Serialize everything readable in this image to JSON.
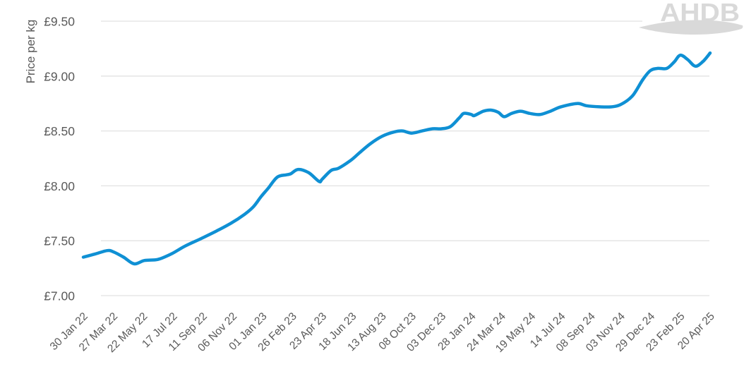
{
  "chart_data": {
    "type": "line",
    "title": "",
    "ylabel": "Price per kg",
    "xlabel": "",
    "ylim": [
      7.0,
      9.5
    ],
    "grid": true,
    "legend_position": "none",
    "y_tick_values": [
      7.0,
      7.5,
      8.0,
      8.5,
      9.0,
      9.5
    ],
    "y_tick_labels": [
      "£7.00",
      "£7.50",
      "£8.00",
      "£8.50",
      "£9.00",
      "£9.50"
    ],
    "x_tick_labels": [
      "30 Jan 22",
      "27 Mar 22",
      "22 May 22",
      "17 Jul 22",
      "11 Sep 22",
      "06 Nov 22",
      "01 Jan 23",
      "26 Feb 23",
      "23 Apr 23",
      "18 Jun 23",
      "13 Aug 23",
      "08 Oct 23",
      "03 Dec 23",
      "28 Jan 24",
      "24 Mar 24",
      "19 May 24",
      "14 Jul 24",
      "08 Sep 24",
      "03 Nov 24",
      "29 Dec 24",
      "23 Feb 25",
      "20 Apr 25"
    ],
    "x_unit_note": "x values of points are in x-tick index units (0 = 30 Jan 22, 21 = 20 Apr 25, 1 unit = 8 weeks)",
    "series": [
      {
        "name": "Price per kg",
        "color": "#0f90d4",
        "points": [
          [
            0.0,
            7.35
          ],
          [
            0.4,
            7.38
          ],
          [
            0.8,
            7.41
          ],
          [
            1.0,
            7.4
          ],
          [
            1.35,
            7.35
          ],
          [
            1.7,
            7.29
          ],
          [
            2.05,
            7.32
          ],
          [
            2.5,
            7.33
          ],
          [
            2.95,
            7.38
          ],
          [
            3.4,
            7.45
          ],
          [
            3.95,
            7.52
          ],
          [
            4.4,
            7.58
          ],
          [
            4.95,
            7.66
          ],
          [
            5.4,
            7.74
          ],
          [
            5.7,
            7.81
          ],
          [
            5.95,
            7.9
          ],
          [
            6.2,
            7.98
          ],
          [
            6.5,
            8.08
          ],
          [
            6.8,
            8.1
          ],
          [
            6.95,
            8.11
          ],
          [
            7.2,
            8.15
          ],
          [
            7.55,
            8.12
          ],
          [
            7.9,
            8.04
          ],
          [
            8.0,
            8.06
          ],
          [
            8.3,
            8.14
          ],
          [
            8.55,
            8.16
          ],
          [
            8.95,
            8.23
          ],
          [
            9.25,
            8.3
          ],
          [
            9.6,
            8.38
          ],
          [
            10.0,
            8.45
          ],
          [
            10.4,
            8.49
          ],
          [
            10.7,
            8.5
          ],
          [
            11.0,
            8.48
          ],
          [
            11.35,
            8.5
          ],
          [
            11.7,
            8.52
          ],
          [
            12.0,
            8.52
          ],
          [
            12.3,
            8.54
          ],
          [
            12.6,
            8.62
          ],
          [
            12.75,
            8.66
          ],
          [
            13.0,
            8.65
          ],
          [
            13.1,
            8.64
          ],
          [
            13.4,
            8.68
          ],
          [
            13.65,
            8.69
          ],
          [
            13.9,
            8.67
          ],
          [
            14.1,
            8.63
          ],
          [
            14.35,
            8.66
          ],
          [
            14.65,
            8.68
          ],
          [
            14.95,
            8.66
          ],
          [
            15.3,
            8.65
          ],
          [
            15.65,
            8.68
          ],
          [
            16.0,
            8.72
          ],
          [
            16.55,
            8.75
          ],
          [
            16.85,
            8.73
          ],
          [
            17.3,
            8.72
          ],
          [
            17.7,
            8.72
          ],
          [
            18.0,
            8.74
          ],
          [
            18.4,
            8.82
          ],
          [
            18.75,
            8.97
          ],
          [
            19.0,
            9.05
          ],
          [
            19.25,
            9.07
          ],
          [
            19.55,
            9.07
          ],
          [
            19.8,
            9.13
          ],
          [
            20.0,
            9.19
          ],
          [
            20.25,
            9.15
          ],
          [
            20.5,
            9.09
          ],
          [
            20.75,
            9.13
          ],
          [
            21.0,
            9.21
          ]
        ]
      }
    ]
  },
  "watermark": {
    "text": "AHDB",
    "color": "#d9d9d9"
  },
  "colors": {
    "line": "#0f90d4",
    "grid": "#e2e2e2",
    "axis_text": "#595959"
  }
}
